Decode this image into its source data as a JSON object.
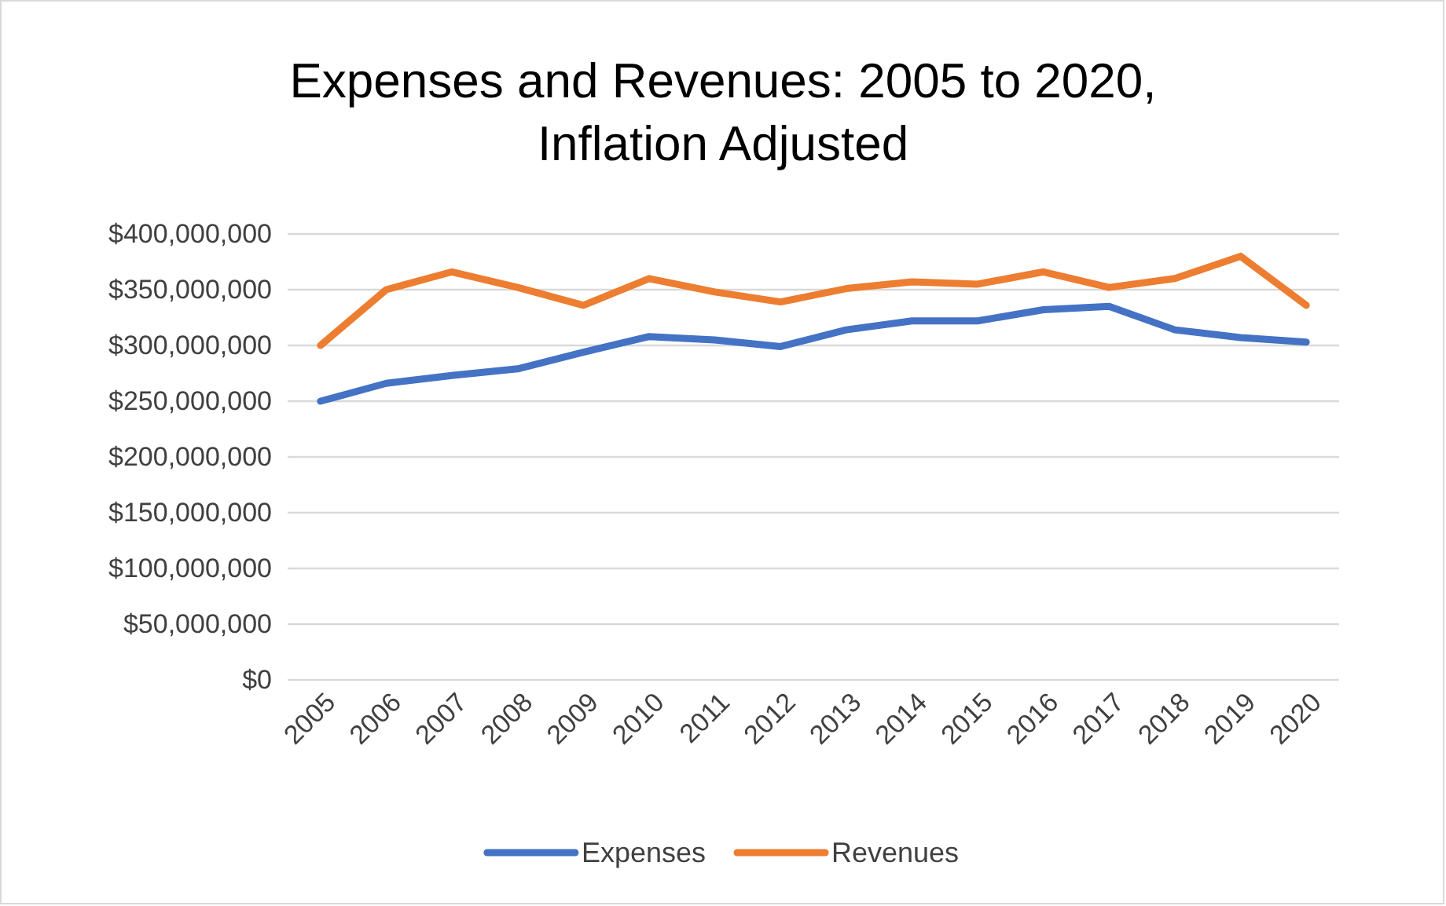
{
  "chart_data": {
    "type": "line",
    "title": "Expenses and Revenues: 2005 to 2020, Inflation Adjusted",
    "categories": [
      "2005",
      "2006",
      "2007",
      "2008",
      "2009",
      "2010",
      "2011",
      "2012",
      "2013",
      "2014",
      "2015",
      "2016",
      "2017",
      "2018",
      "2019",
      "2020"
    ],
    "series": [
      {
        "name": "Expenses",
        "color": "#4472c4",
        "values": [
          250000000,
          266000000,
          273000000,
          279000000,
          294000000,
          308000000,
          305000000,
          299000000,
          314000000,
          322000000,
          322000000,
          332000000,
          335000000,
          314000000,
          307000000,
          303000000
        ]
      },
      {
        "name": "Revenues",
        "color": "#ed7d31",
        "values": [
          300000000,
          350000000,
          366000000,
          352000000,
          336000000,
          360000000,
          348000000,
          339000000,
          351000000,
          357000000,
          355000000,
          366000000,
          352000000,
          360000000,
          380000000,
          336000000
        ]
      }
    ],
    "ylim": [
      0,
      400000000
    ],
    "yticks": [
      {
        "value": 0,
        "label": "$0"
      },
      {
        "value": 50000000,
        "label": "$50,000,000"
      },
      {
        "value": 100000000,
        "label": "$100,000,000"
      },
      {
        "value": 150000000,
        "label": "$150,000,000"
      },
      {
        "value": 200000000,
        "label": "$200,000,000"
      },
      {
        "value": 250000000,
        "label": "$250,000,000"
      },
      {
        "value": 300000000,
        "label": "$300,000,000"
      },
      {
        "value": 350000000,
        "label": "$350,000,000"
      },
      {
        "value": 400000000,
        "label": "$400,000,000"
      }
    ],
    "grid": "y",
    "legend": "bottom",
    "marker": "none",
    "line_style": "solid"
  }
}
